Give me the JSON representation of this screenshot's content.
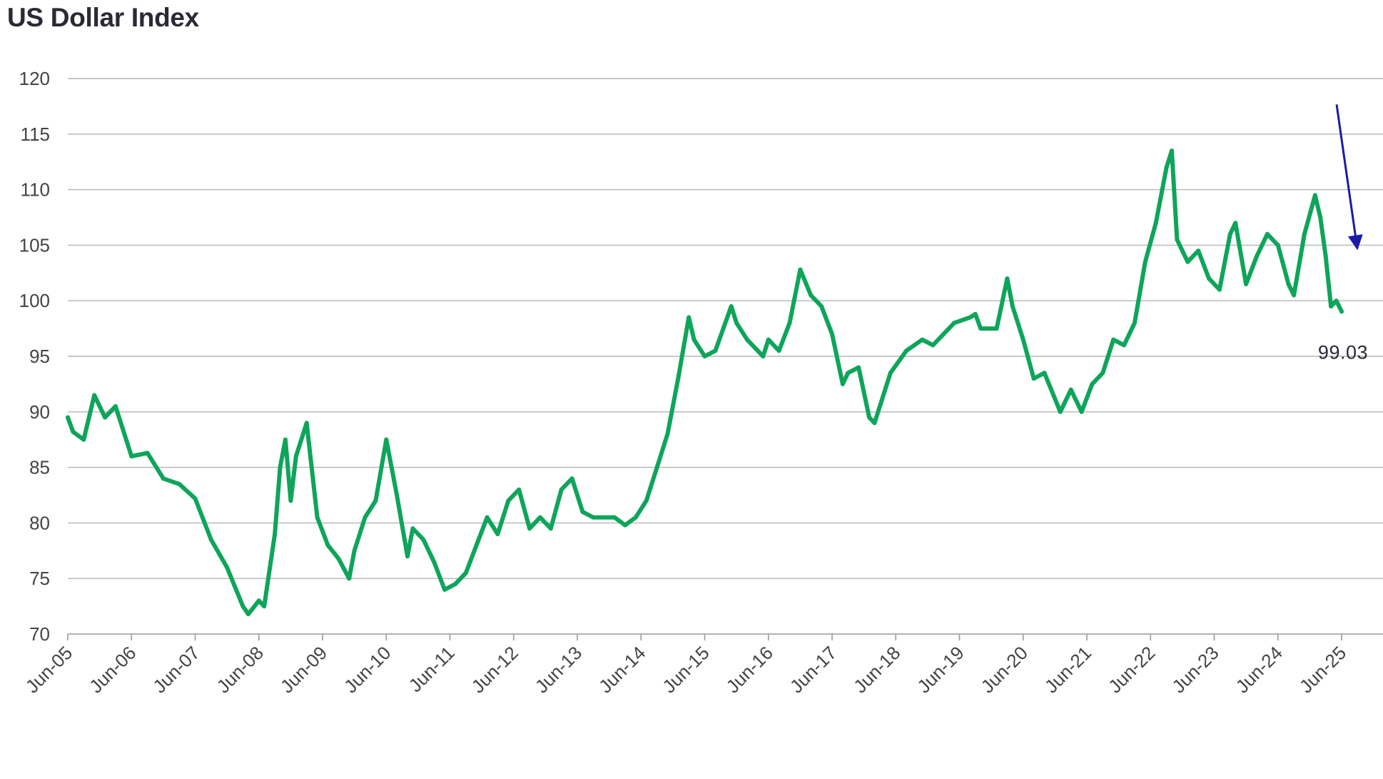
{
  "chart_data": {
    "type": "line",
    "title": "US Dollar Index",
    "xlabel": "",
    "ylabel": "",
    "ylim": [
      70,
      120
    ],
    "yticks": [
      70,
      75,
      80,
      85,
      90,
      95,
      100,
      105,
      110,
      115,
      120
    ],
    "x_tick_labels": [
      "Jun-05",
      "Jun-06",
      "Jun-07",
      "Jun-08",
      "Jun-09",
      "Jun-10",
      "Jun-11",
      "Jun-12",
      "Jun-13",
      "Jun-14",
      "Jun-15",
      "Jun-16",
      "Jun-17",
      "Jun-18",
      "Jun-19",
      "Jun-20",
      "Jun-21",
      "Jun-22",
      "Jun-23",
      "Jun-24",
      "Jun-25"
    ],
    "grid": true,
    "legend": "none",
    "series": [
      {
        "color": "#0ea55a",
        "x": [
          "2005-06",
          "2005-07",
          "2005-09",
          "2005-11",
          "2006-01",
          "2006-03",
          "2006-06",
          "2006-09",
          "2006-12",
          "2007-03",
          "2007-06",
          "2007-09",
          "2007-12",
          "2008-03",
          "2008-04",
          "2008-06",
          "2008-07",
          "2008-09",
          "2008-10",
          "2008-11",
          "2008-12",
          "2009-01",
          "2009-03",
          "2009-05",
          "2009-07",
          "2009-09",
          "2009-11",
          "2009-12",
          "2010-02",
          "2010-04",
          "2010-06",
          "2010-08",
          "2010-10",
          "2010-11",
          "2011-01",
          "2011-03",
          "2011-05",
          "2011-07",
          "2011-09",
          "2011-11",
          "2012-01",
          "2012-03",
          "2012-05",
          "2012-07",
          "2012-09",
          "2012-11",
          "2013-01",
          "2013-03",
          "2013-05",
          "2013-07",
          "2013-09",
          "2013-11",
          "2014-01",
          "2014-03",
          "2014-05",
          "2014-07",
          "2014-09",
          "2014-11",
          "2015-01",
          "2015-03",
          "2015-04",
          "2015-06",
          "2015-08",
          "2015-11",
          "2015-12",
          "2016-02",
          "2016-05",
          "2016-06",
          "2016-08",
          "2016-10",
          "2016-12",
          "2017-02",
          "2017-04",
          "2017-06",
          "2017-08",
          "2017-09",
          "2017-11",
          "2018-01",
          "2018-02",
          "2018-05",
          "2018-08",
          "2018-11",
          "2019-01",
          "2019-03",
          "2019-05",
          "2019-08",
          "2019-09",
          "2019-10",
          "2020-01",
          "2020-03",
          "2020-04",
          "2020-06",
          "2020-08",
          "2020-10",
          "2021-01",
          "2021-03",
          "2021-05",
          "2021-07",
          "2021-09",
          "2021-11",
          "2022-01",
          "2022-03",
          "2022-05",
          "2022-07",
          "2022-09",
          "2022-10",
          "2022-11",
          "2023-01",
          "2023-03",
          "2023-05",
          "2023-07",
          "2023-09",
          "2023-10",
          "2023-12",
          "2024-02",
          "2024-04",
          "2024-06",
          "2024-08",
          "2024-09",
          "2024-11",
          "2025-01",
          "2025-02",
          "2025-03",
          "2025-04",
          "2025-05",
          "2025-06"
        ],
        "y": [
          89.5,
          88.2,
          87.5,
          91.5,
          89.5,
          90.5,
          86.0,
          86.3,
          84.0,
          83.5,
          82.2,
          78.5,
          76.0,
          72.5,
          71.8,
          73.0,
          72.5,
          79.0,
          85.0,
          87.5,
          82.0,
          86.0,
          89.0,
          80.5,
          78.0,
          76.8,
          75.0,
          77.5,
          80.5,
          82.0,
          87.5,
          82.5,
          77.0,
          79.5,
          78.5,
          76.5,
          74.0,
          74.5,
          75.5,
          78.0,
          80.5,
          79.0,
          82.0,
          83.0,
          79.5,
          80.5,
          79.5,
          83.0,
          84.0,
          81.0,
          80.5,
          80.5,
          80.5,
          79.8,
          80.5,
          82.0,
          85.0,
          88.0,
          93.0,
          98.5,
          96.5,
          95.0,
          95.5,
          99.5,
          98.0,
          96.5,
          95.0,
          96.5,
          95.5,
          98.0,
          102.8,
          100.5,
          99.5,
          97.0,
          92.5,
          93.5,
          94.0,
          89.5,
          89.0,
          93.5,
          95.5,
          96.5,
          96.0,
          97.0,
          98.0,
          98.5,
          98.8,
          97.5,
          97.5,
          102.0,
          99.5,
          96.5,
          93.0,
          93.5,
          90.0,
          92.0,
          90.0,
          92.5,
          93.5,
          96.5,
          96.0,
          98.0,
          103.5,
          107.0,
          112.0,
          113.5,
          105.5,
          103.5,
          104.5,
          102.0,
          101.0,
          106.0,
          107.0,
          101.5,
          104.0,
          106.0,
          105.0,
          101.5,
          100.5,
          106.0,
          109.5,
          107.5,
          104.0,
          99.5,
          100.0,
          99.03
        ]
      }
    ],
    "annotations": [
      {
        "text": "99.03",
        "target": "last-value",
        "arrow_color": "#1a1aa6"
      }
    ]
  }
}
